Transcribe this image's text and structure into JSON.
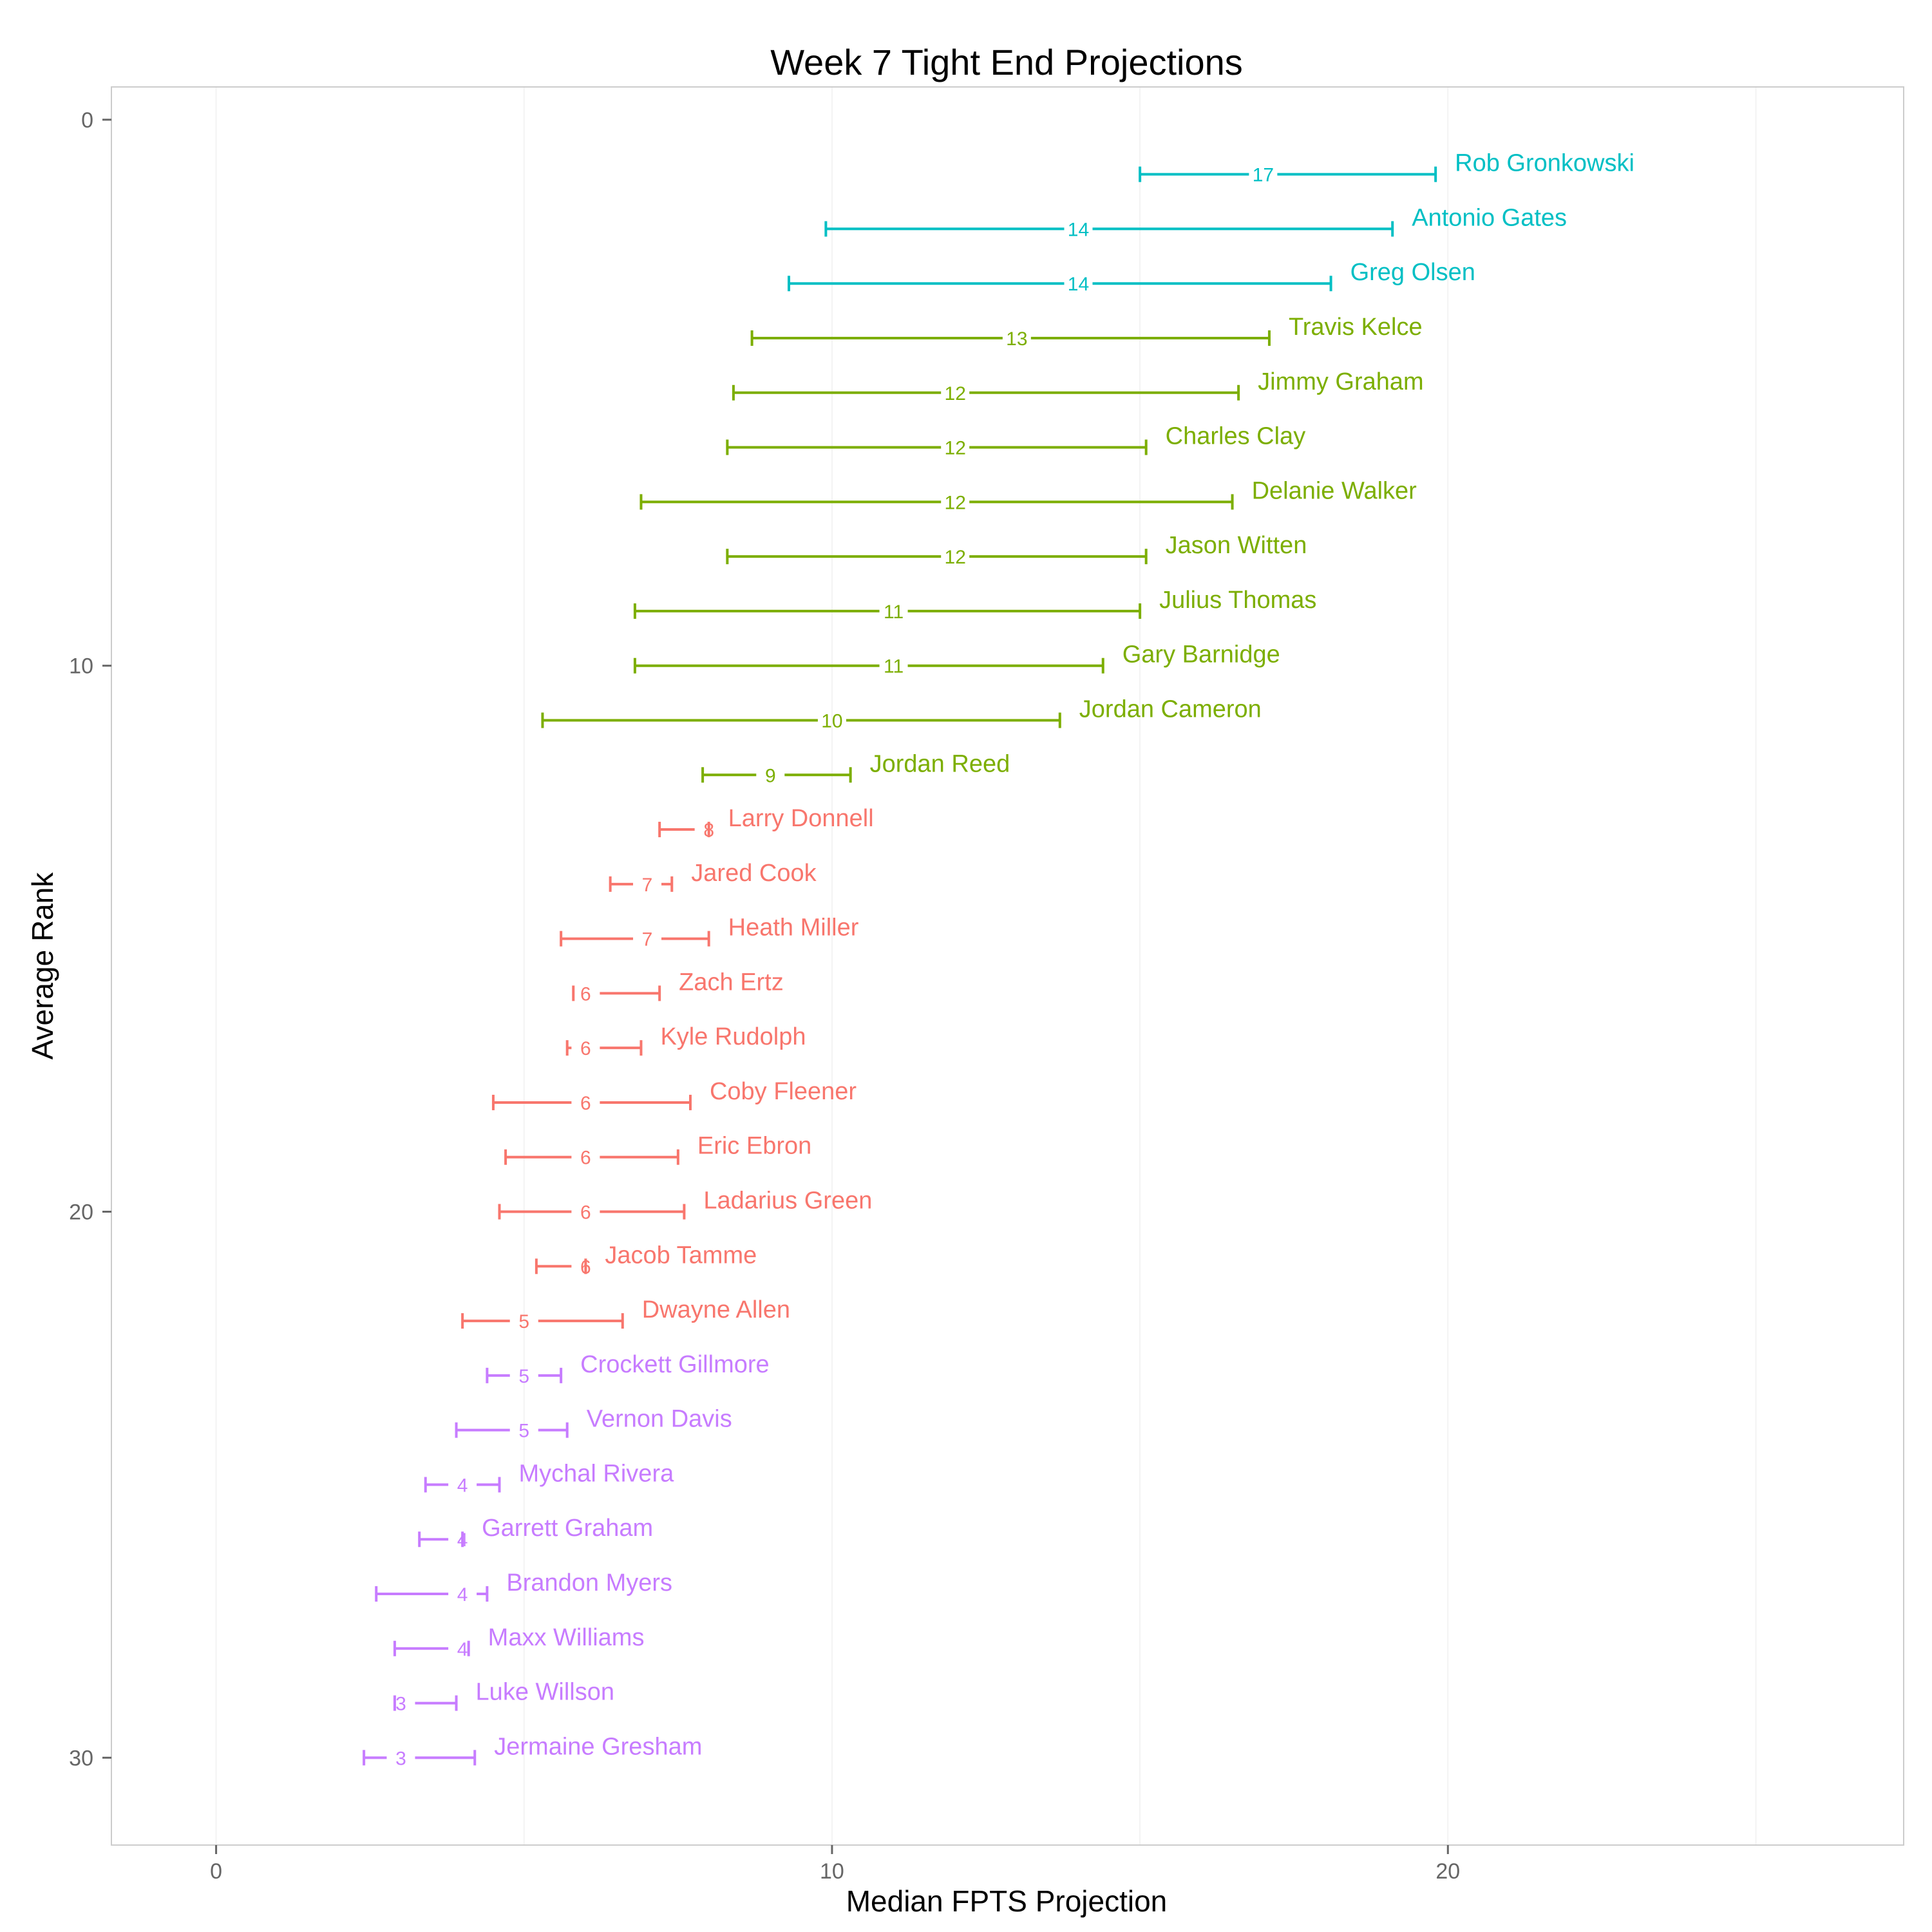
{
  "chart_data": {
    "type": "errorbar",
    "title": "Week 7 Tight End Projections",
    "xlabel": "Median FPTS Projection",
    "ylabel": "Average Rank",
    "xlim": [
      -1.7,
      27.4
    ],
    "ylim": [
      31.6,
      -0.6
    ],
    "x_ticks": [
      0,
      10,
      20
    ],
    "y_ticks": [
      0,
      10,
      20,
      30
    ],
    "grid": true,
    "tier_colors": {
      "tier1": "#00BFC4",
      "tier2": "#7CAE00",
      "tier3": "#F8766D",
      "tier4": "#C77CFF"
    },
    "players": [
      {
        "name": "Rob Gronkowski",
        "rank": 1,
        "low": 15.0,
        "median": 17,
        "high": 19.8,
        "tier": "tier1"
      },
      {
        "name": "Antonio Gates",
        "rank": 2,
        "low": 9.9,
        "median": 14,
        "high": 19.1,
        "tier": "tier1"
      },
      {
        "name": "Greg Olsen",
        "rank": 3,
        "low": 9.3,
        "median": 14,
        "high": 18.1,
        "tier": "tier1"
      },
      {
        "name": "Travis Kelce",
        "rank": 4,
        "low": 8.7,
        "median": 13,
        "high": 17.1,
        "tier": "tier2"
      },
      {
        "name": "Jimmy Graham",
        "rank": 5,
        "low": 8.4,
        "median": 12,
        "high": 16.6,
        "tier": "tier2"
      },
      {
        "name": "Charles Clay",
        "rank": 6,
        "low": 8.3,
        "median": 12,
        "high": 15.1,
        "tier": "tier2"
      },
      {
        "name": "Delanie Walker",
        "rank": 7,
        "low": 6.9,
        "median": 12,
        "high": 16.5,
        "tier": "tier2"
      },
      {
        "name": "Jason Witten",
        "rank": 8,
        "low": 8.3,
        "median": 12,
        "high": 15.1,
        "tier": "tier2"
      },
      {
        "name": "Julius Thomas",
        "rank": 9,
        "low": 6.8,
        "median": 11,
        "high": 15.0,
        "tier": "tier2"
      },
      {
        "name": "Gary Barnidge",
        "rank": 10,
        "low": 6.8,
        "median": 11,
        "high": 14.4,
        "tier": "tier2"
      },
      {
        "name": "Jordan Cameron",
        "rank": 11,
        "low": 5.3,
        "median": 10,
        "high": 13.7,
        "tier": "tier2"
      },
      {
        "name": "Jordan Reed",
        "rank": 12,
        "low": 7.9,
        "median": 9,
        "high": 10.3,
        "tier": "tier2"
      },
      {
        "name": "Larry Donnell",
        "rank": 13,
        "low": 7.2,
        "median": 8,
        "high": 8.0,
        "tier": "tier3"
      },
      {
        "name": "Jared Cook",
        "rank": 14,
        "low": 6.4,
        "median": 7,
        "high": 7.4,
        "tier": "tier3"
      },
      {
        "name": "Heath Miller",
        "rank": 15,
        "low": 5.6,
        "median": 7,
        "high": 8.0,
        "tier": "tier3"
      },
      {
        "name": "Zach Ertz",
        "rank": 16,
        "low": 5.8,
        "median": 6,
        "high": 7.2,
        "tier": "tier3"
      },
      {
        "name": "Kyle Rudolph",
        "rank": 17,
        "low": 5.7,
        "median": 6,
        "high": 6.9,
        "tier": "tier3"
      },
      {
        "name": "Coby Fleener",
        "rank": 18,
        "low": 4.5,
        "median": 6,
        "high": 7.7,
        "tier": "tier3"
      },
      {
        "name": "Eric Ebron",
        "rank": 19,
        "low": 4.7,
        "median": 6,
        "high": 7.5,
        "tier": "tier3"
      },
      {
        "name": "Ladarius Green",
        "rank": 20,
        "low": 4.6,
        "median": 6,
        "high": 7.6,
        "tier": "tier3"
      },
      {
        "name": "Jacob Tamme",
        "rank": 21,
        "low": 5.2,
        "median": 6,
        "high": 6.0,
        "tier": "tier3"
      },
      {
        "name": "Dwayne Allen",
        "rank": 22,
        "low": 4.0,
        "median": 5,
        "high": 6.6,
        "tier": "tier3"
      },
      {
        "name": "Crockett Gillmore",
        "rank": 23,
        "low": 4.4,
        "median": 5,
        "high": 5.6,
        "tier": "tier4"
      },
      {
        "name": "Vernon Davis",
        "rank": 24,
        "low": 3.9,
        "median": 5,
        "high": 5.7,
        "tier": "tier4"
      },
      {
        "name": "Mychal Rivera",
        "rank": 25,
        "low": 3.4,
        "median": 4,
        "high": 4.6,
        "tier": "tier4"
      },
      {
        "name": "Garrett Graham",
        "rank": 26,
        "low": 3.3,
        "median": 4,
        "high": 4.0,
        "tier": "tier4"
      },
      {
        "name": "Brandon Myers",
        "rank": 27,
        "low": 2.6,
        "median": 4,
        "high": 4.4,
        "tier": "tier4"
      },
      {
        "name": "Maxx Williams",
        "rank": 28,
        "low": 2.9,
        "median": 4,
        "high": 4.1,
        "tier": "tier4"
      },
      {
        "name": "Luke Willson",
        "rank": 29,
        "low": 2.9,
        "median": 3,
        "high": 3.9,
        "tier": "tier4"
      },
      {
        "name": "Jermaine Gresham",
        "rank": 30,
        "low": 2.4,
        "median": 3,
        "high": 4.2,
        "tier": "tier4"
      }
    ]
  }
}
